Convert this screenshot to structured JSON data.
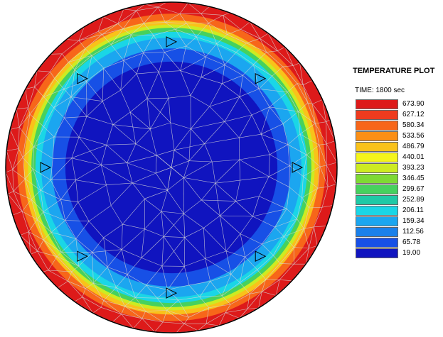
{
  "legend": {
    "title": "TEMPERATURE PLOT",
    "time_label": "TIME: 1800 sec",
    "entries": [
      {
        "value": "673.90",
        "color": "#dd1a1a"
      },
      {
        "value": "627.12",
        "color": "#ef3b1e"
      },
      {
        "value": "580.34",
        "color": "#f7661a"
      },
      {
        "value": "533.56",
        "color": "#fb8f16"
      },
      {
        "value": "486.79",
        "color": "#f9c21a"
      },
      {
        "value": "440.01",
        "color": "#f5f51b"
      },
      {
        "value": "393.23",
        "color": "#cdeb22"
      },
      {
        "value": "346.45",
        "color": "#7ed934"
      },
      {
        "value": "299.67",
        "color": "#46d15e"
      },
      {
        "value": "252.89",
        "color": "#1fc9a6"
      },
      {
        "value": "206.11",
        "color": "#1ad6e6"
      },
      {
        "value": "159.34",
        "color": "#1ba6f0"
      },
      {
        "value": "112.56",
        "color": "#1a80ea"
      },
      {
        "value": "65.78",
        "color": "#1750e6"
      },
      {
        "value": "19.00",
        "color": "#1014bf"
      }
    ]
  },
  "contour_levels": [
    {
      "color": "#dd1a1a",
      "radius_fraction": 1.0
    },
    {
      "color": "#f7661a",
      "radius_fraction": 0.93
    },
    {
      "color": "#f9c21a",
      "radius_fraction": 0.89
    },
    {
      "color": "#cdeb22",
      "radius_fraction": 0.865
    },
    {
      "color": "#46d15e",
      "radius_fraction": 0.845
    },
    {
      "color": "#1ad6e6",
      "radius_fraction": 0.82
    },
    {
      "color": "#1ba6f0",
      "radius_fraction": 0.785
    },
    {
      "color": "#1750e6",
      "radius_fraction": 0.72
    },
    {
      "color": "#1014bf",
      "radius_fraction": 0.64
    }
  ],
  "thermocouple_marker_count": 8
}
